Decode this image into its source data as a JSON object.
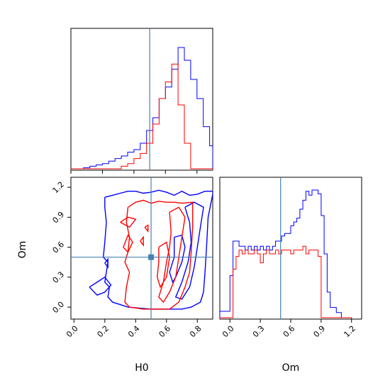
{
  "chart_data": {
    "type": "corner",
    "parameters": [
      "H0",
      "Om"
    ],
    "truth": {
      "H0": 0.5,
      "Om": 0.5
    },
    "colors": {
      "blue": "#0000ff",
      "red": "#ff0000",
      "truth": "#4682b4"
    },
    "axes": {
      "h0_marginal": {
        "xlim": [
          0.0,
          0.9
        ],
        "xticks": [
          0.0,
          0.2,
          0.4,
          0.6,
          0.8
        ],
        "show_ticklabels": false,
        "show_yaxis": false
      },
      "joint": {
        "xlim": [
          -0.02,
          0.9
        ],
        "ylim": [
          -0.12,
          1.3
        ],
        "xticks": [
          "0.0",
          "0.2",
          "0.4",
          "0.6",
          "0.8"
        ],
        "yticks": [
          "0.0",
          "0.3",
          "0.6",
          "0.9",
          "1.2"
        ],
        "xlabel": "H0",
        "ylabel": "Om"
      },
      "om_marginal": {
        "xlim": [
          -0.1,
          1.3
        ],
        "xticks": [
          "0.0",
          "0.3",
          "0.6",
          "0.9",
          "1.2"
        ],
        "xlabel": "Om",
        "show_yaxis": false
      }
    },
    "h0_hist": {
      "bin_edges": [
        0.0,
        0.04,
        0.08,
        0.12,
        0.16,
        0.2,
        0.24,
        0.28,
        0.32,
        0.36,
        0.4,
        0.44,
        0.48,
        0.52,
        0.56,
        0.6,
        0.64,
        0.68,
        0.72,
        0.76,
        0.8,
        0.84,
        0.88,
        0.9
      ],
      "blue": [
        0.0,
        0.0,
        0.008,
        0.02,
        0.03,
        0.04,
        0.06,
        0.08,
        0.1,
        0.13,
        0.15,
        0.2,
        0.3,
        0.4,
        0.55,
        0.64,
        0.78,
        0.95,
        0.85,
        0.7,
        0.55,
        0.33,
        0.18
      ],
      "red": [
        0.0,
        0.0,
        0.0,
        0.0,
        0.0,
        0.0,
        0.0,
        0.0,
        0.02,
        0.04,
        0.08,
        0.12,
        0.2,
        0.35,
        0.55,
        0.68,
        0.82,
        0.5,
        0.2,
        0.0,
        0.0,
        0.0,
        0.0
      ]
    },
    "om_hist": {
      "bin_edges": [
        -0.1,
        0.0,
        0.03,
        0.06,
        0.09,
        0.12,
        0.15,
        0.18,
        0.21,
        0.24,
        0.27,
        0.3,
        0.33,
        0.36,
        0.39,
        0.42,
        0.45,
        0.48,
        0.51,
        0.54,
        0.57,
        0.6,
        0.63,
        0.66,
        0.69,
        0.72,
        0.75,
        0.78,
        0.81,
        0.84,
        0.87,
        0.9,
        0.93,
        0.96,
        0.99,
        1.02,
        1.05,
        1.1,
        1.15,
        1.2
      ],
      "blue": [
        0.05,
        0.33,
        0.6,
        0.6,
        0.56,
        0.56,
        0.53,
        0.56,
        0.53,
        0.56,
        0.53,
        0.56,
        0.53,
        0.56,
        0.53,
        0.56,
        0.6,
        0.6,
        0.64,
        0.66,
        0.66,
        0.72,
        0.75,
        0.78,
        0.85,
        0.92,
        0.99,
        0.96,
        1.0,
        1.0,
        0.97,
        0.8,
        0.5,
        0.2,
        0.08,
        0.08,
        0.04,
        0.0,
        0.0
      ],
      "red": [
        0.0,
        0.0,
        0.38,
        0.48,
        0.53,
        0.5,
        0.53,
        0.5,
        0.5,
        0.53,
        0.5,
        0.43,
        0.5,
        0.53,
        0.5,
        0.5,
        0.53,
        0.5,
        0.53,
        0.53,
        0.53,
        0.5,
        0.53,
        0.53,
        0.53,
        0.56,
        0.5,
        0.53,
        0.53,
        0.53,
        0.48,
        0.0,
        0.0,
        0.0,
        0.0,
        0.0,
        0.0,
        0.0,
        0.0
      ]
    },
    "contours": {
      "blue": [
        [
          [
            0.2,
            1.1
          ],
          [
            0.25,
            1.12
          ],
          [
            0.3,
            1.14
          ],
          [
            0.35,
            1.16
          ],
          [
            0.4,
            1.16
          ],
          [
            0.45,
            1.14
          ],
          [
            0.5,
            1.15
          ],
          [
            0.55,
            1.17
          ],
          [
            0.6,
            1.15
          ],
          [
            0.65,
            1.12
          ],
          [
            0.7,
            1.16
          ],
          [
            0.75,
            1.12
          ],
          [
            0.8,
            1.13
          ],
          [
            0.85,
            1.16
          ],
          [
            0.9,
            1.16
          ],
          [
            0.9,
            1.13
          ],
          [
            0.87,
            0.9
          ],
          [
            0.86,
            0.6
          ],
          [
            0.85,
            0.35
          ],
          [
            0.84,
            0.15
          ],
          [
            0.82,
            0.05
          ],
          [
            0.76,
            0.0
          ],
          [
            0.7,
            -0.02
          ],
          [
            0.6,
            -0.02
          ],
          [
            0.5,
            -0.02
          ],
          [
            0.35,
            0.0
          ],
          [
            0.25,
            0.05
          ],
          [
            0.22,
            0.1
          ],
          [
            0.23,
            0.2
          ],
          [
            0.2,
            0.25
          ],
          [
            0.21,
            0.35
          ],
          [
            0.22,
            0.45
          ],
          [
            0.19,
            0.5
          ],
          [
            0.2,
            0.65
          ],
          [
            0.21,
            0.85
          ],
          [
            0.2,
            1.0
          ],
          [
            0.2,
            1.1
          ]
        ],
        [
          [
            0.1,
            0.2
          ],
          [
            0.15,
            0.25
          ],
          [
            0.2,
            0.3
          ],
          [
            0.24,
            0.22
          ],
          [
            0.2,
            0.15
          ],
          [
            0.15,
            0.12
          ],
          [
            0.1,
            0.2
          ]
        ],
        [
          [
            0.2,
            0.44
          ],
          [
            0.22,
            0.48
          ],
          [
            0.22,
            0.4
          ],
          [
            0.2,
            0.44
          ]
        ],
        [
          [
            0.72,
            1.0
          ],
          [
            0.78,
            1.05
          ],
          [
            0.84,
            1.0
          ],
          [
            0.82,
            0.8
          ],
          [
            0.8,
            0.6
          ],
          [
            0.78,
            0.4
          ],
          [
            0.75,
            0.2
          ],
          [
            0.7,
            0.08
          ],
          [
            0.66,
            0.1
          ],
          [
            0.7,
            0.25
          ],
          [
            0.74,
            0.45
          ],
          [
            0.76,
            0.65
          ],
          [
            0.75,
            0.85
          ],
          [
            0.72,
            1.0
          ]
        ],
        [
          [
            0.65,
            0.7
          ],
          [
            0.7,
            0.72
          ],
          [
            0.72,
            0.6
          ],
          [
            0.7,
            0.45
          ],
          [
            0.66,
            0.3
          ],
          [
            0.64,
            0.25
          ],
          [
            0.62,
            0.35
          ],
          [
            0.65,
            0.5
          ],
          [
            0.65,
            0.7
          ]
        ]
      ],
      "red": [
        [
          [
            0.35,
            1.0
          ],
          [
            0.4,
            1.05
          ],
          [
            0.45,
            1.07
          ],
          [
            0.5,
            1.04
          ],
          [
            0.55,
            1.06
          ],
          [
            0.6,
            1.05
          ],
          [
            0.65,
            1.05
          ],
          [
            0.7,
            1.04
          ],
          [
            0.77,
            1.05
          ],
          [
            0.77,
            0.8
          ],
          [
            0.76,
            0.55
          ],
          [
            0.75,
            0.35
          ],
          [
            0.72,
            0.2
          ],
          [
            0.68,
            0.05
          ],
          [
            0.62,
            -0.02
          ],
          [
            0.55,
            -0.02
          ],
          [
            0.45,
            -0.02
          ],
          [
            0.36,
            0.0
          ],
          [
            0.33,
            0.05
          ],
          [
            0.34,
            0.2
          ],
          [
            0.36,
            0.35
          ],
          [
            0.33,
            0.45
          ],
          [
            0.35,
            0.55
          ],
          [
            0.36,
            0.7
          ],
          [
            0.34,
            0.85
          ],
          [
            0.35,
            1.0
          ]
        ],
        [
          [
            0.3,
            0.85
          ],
          [
            0.35,
            0.9
          ],
          [
            0.4,
            0.88
          ],
          [
            0.36,
            0.8
          ],
          [
            0.3,
            0.85
          ]
        ],
        [
          [
            0.32,
            0.6
          ],
          [
            0.35,
            0.72
          ],
          [
            0.38,
            0.65
          ],
          [
            0.35,
            0.55
          ],
          [
            0.32,
            0.6
          ]
        ],
        [
          [
            0.62,
            0.95
          ],
          [
            0.68,
            1.0
          ],
          [
            0.72,
            0.9
          ],
          [
            0.7,
            0.7
          ],
          [
            0.68,
            0.5
          ],
          [
            0.66,
            0.3
          ],
          [
            0.62,
            0.15
          ],
          [
            0.58,
            0.05
          ],
          [
            0.55,
            0.1
          ],
          [
            0.58,
            0.25
          ],
          [
            0.6,
            0.45
          ],
          [
            0.62,
            0.6
          ],
          [
            0.63,
            0.75
          ],
          [
            0.62,
            0.95
          ]
        ],
        [
          [
            0.55,
            0.6
          ],
          [
            0.6,
            0.65
          ],
          [
            0.62,
            0.5
          ],
          [
            0.6,
            0.3
          ],
          [
            0.56,
            0.2
          ],
          [
            0.54,
            0.3
          ],
          [
            0.55,
            0.45
          ],
          [
            0.55,
            0.6
          ]
        ],
        [
          [
            0.43,
            0.66
          ],
          [
            0.45,
            0.7
          ],
          [
            0.45,
            0.62
          ],
          [
            0.43,
            0.66
          ]
        ],
        [
          [
            0.46,
            0.8
          ],
          [
            0.48,
            0.82
          ],
          [
            0.48,
            0.76
          ],
          [
            0.46,
            0.8
          ]
        ]
      ]
    }
  }
}
